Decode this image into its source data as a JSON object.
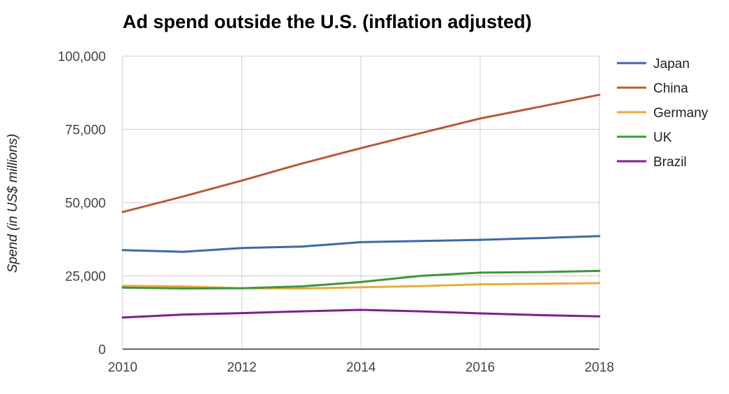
{
  "chart_data": {
    "type": "line",
    "title": "Ad spend outside the U.S. (inflation adjusted)",
    "xlabel": "",
    "ylabel": "Spend (in US$ millions)",
    "x": [
      2010,
      2011,
      2012,
      2013,
      2014,
      2015,
      2016,
      2017,
      2018
    ],
    "x_ticks": [
      "2010",
      "2012",
      "2014",
      "2016",
      "2018"
    ],
    "x_tick_values": [
      2010,
      2012,
      2014,
      2016,
      2018
    ],
    "xlim": [
      2010,
      2018
    ],
    "y_ticks": [
      "0",
      "25,000",
      "50,000",
      "75,000",
      "100,000"
    ],
    "y_tick_values": [
      0,
      25000,
      50000,
      75000,
      100000
    ],
    "ylim": [
      0,
      100000
    ],
    "grid": true,
    "legend_position": "right",
    "series": [
      {
        "name": "Japan",
        "color": "#3b6aa8",
        "values": [
          33800,
          33200,
          34500,
          35000,
          36500,
          36900,
          37300,
          37900,
          38600
        ]
      },
      {
        "name": "China",
        "color": "#b85a3a",
        "values": [
          46800,
          52000,
          57500,
          63300,
          68600,
          73700,
          78700,
          82700,
          86800
        ]
      },
      {
        "name": "Germany",
        "color": "#e8ad3a",
        "values": [
          21600,
          21400,
          20800,
          20700,
          21100,
          21500,
          22100,
          22300,
          22500
        ]
      },
      {
        "name": "UK",
        "color": "#3e963c",
        "values": [
          21000,
          20700,
          20800,
          21400,
          22900,
          25000,
          26100,
          26300,
          26700
        ]
      },
      {
        "name": "Brazil",
        "color": "#7b2287",
        "values": [
          10800,
          11800,
          12300,
          12900,
          13400,
          12900,
          12200,
          11600,
          11200
        ]
      }
    ]
  }
}
